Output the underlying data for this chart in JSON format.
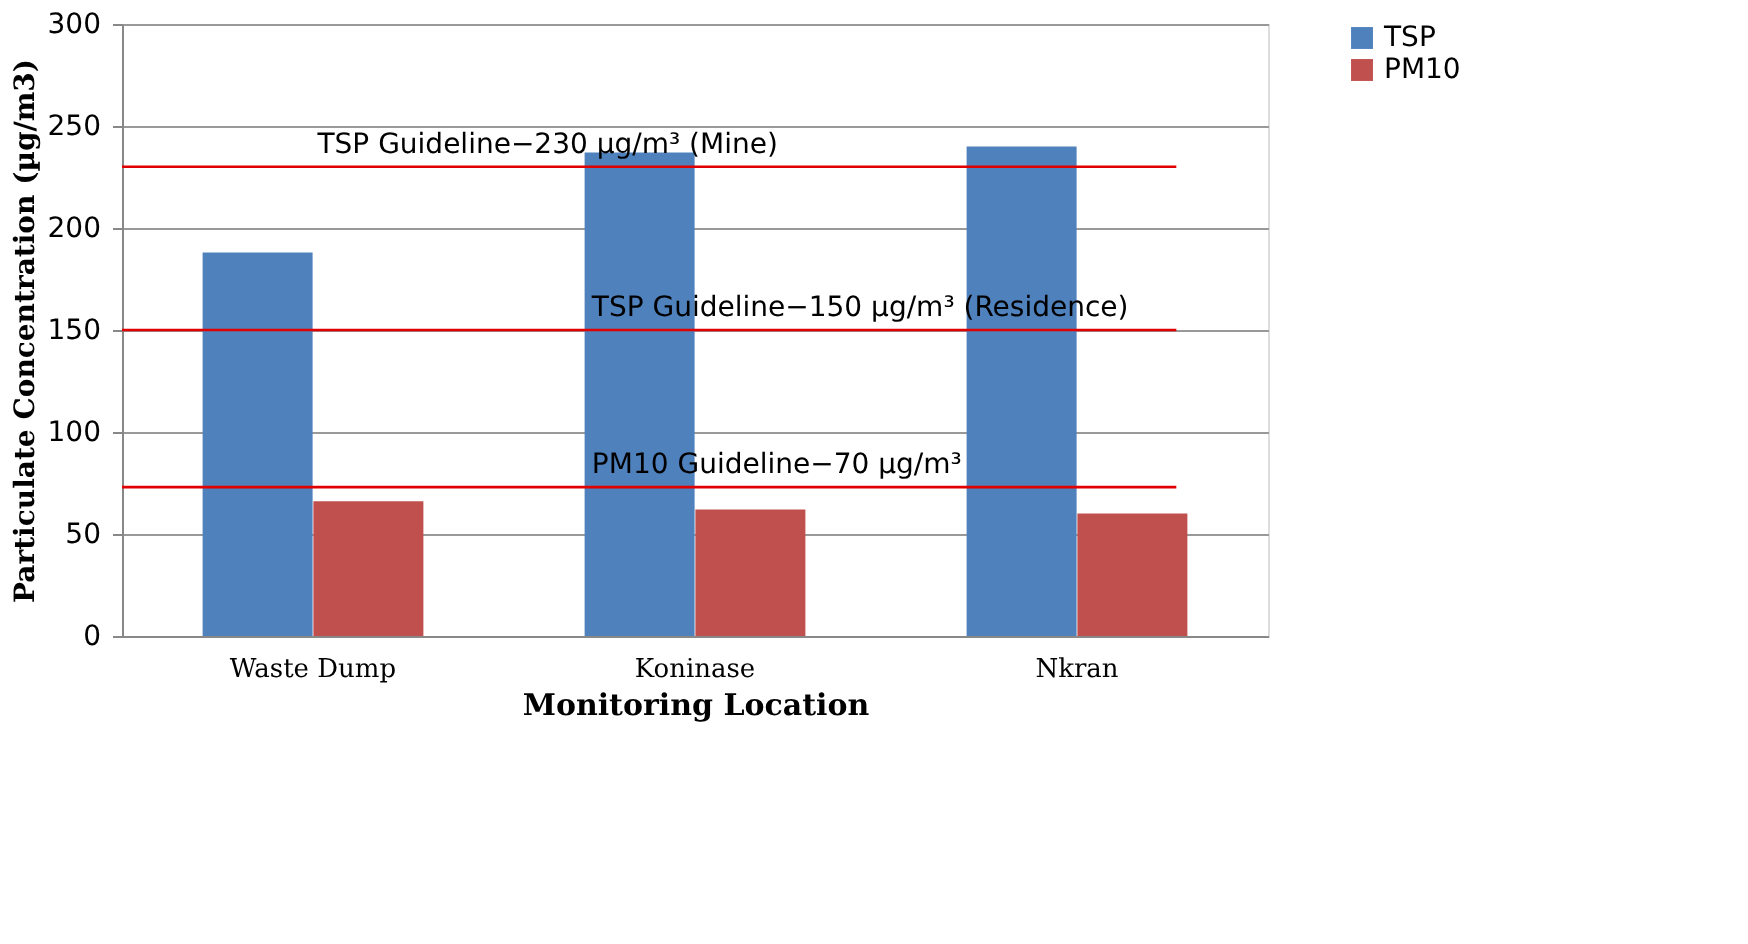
{
  "chart_data": {
    "type": "bar",
    "xlabel": "Monitoring Location",
    "ylabel": "Particulate Concentration (µg/m3)",
    "categories": [
      "Waste Dump",
      "Koninase",
      "Nkran"
    ],
    "series": [
      {
        "name": "TSP",
        "color": "#4f81bd",
        "values": [
          188,
          237,
          240
        ]
      },
      {
        "name": "PM10",
        "color": "#c0504d",
        "values": [
          66,
          62,
          60
        ]
      }
    ],
    "ylim": [
      0,
      300
    ],
    "yticks": [
      0,
      50,
      100,
      150,
      200,
      250,
      300
    ],
    "grid": "y",
    "legend": "right",
    "ref_lines": [
      {
        "axis": "y",
        "value": 230,
        "label": "TSP Guideline−230 µg/m³ (Mine)",
        "color": "#e00000"
      },
      {
        "axis": "y",
        "value": 150,
        "label": "TSP Guideline−150 µg/m³ (Residence)",
        "color": "#e00000"
      },
      {
        "axis": "y",
        "value": 73,
        "label": "PM10 Guideline−70 µg/m³",
        "color": "#e00000"
      }
    ]
  }
}
